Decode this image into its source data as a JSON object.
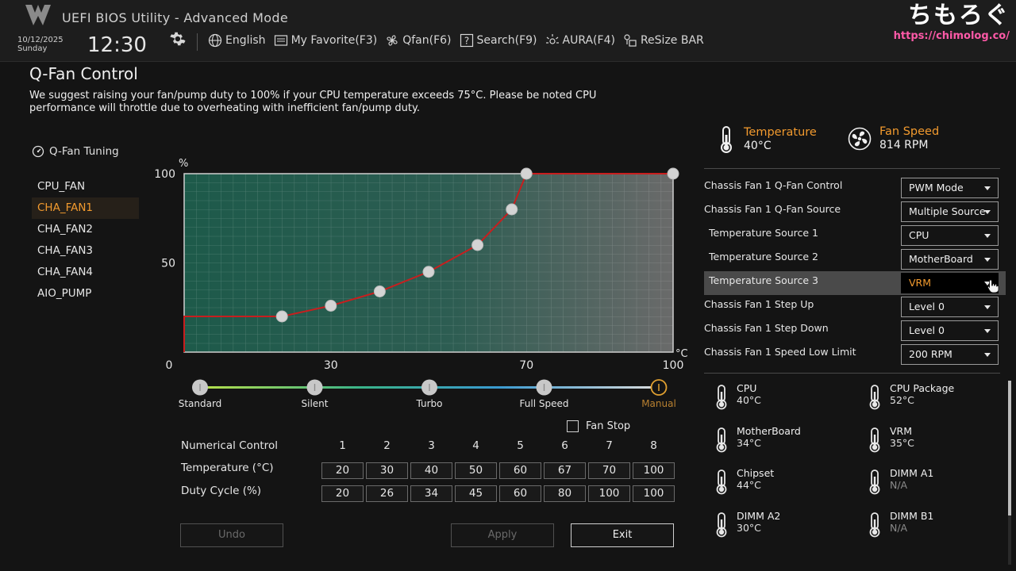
{
  "header": {
    "app_title": "UEFI BIOS Utility - Advanced Mode",
    "date": "10/12/2025",
    "day": "Sunday",
    "time": "12:30",
    "menu": [
      {
        "label": "English",
        "icon": "globe-icon"
      },
      {
        "label": "My Favorite(F3)",
        "icon": "favorite-icon"
      },
      {
        "label": "Qfan(F6)",
        "icon": "fan-icon"
      },
      {
        "label": "Search(F9)",
        "icon": "search-icon"
      },
      {
        "label": "AURA(F4)",
        "icon": "aura-icon"
      },
      {
        "label": "ReSize BAR",
        "icon": "resize-bar-icon"
      }
    ],
    "watermark": "ちもろぐ",
    "watermark_url": "https://chimolog.co/"
  },
  "page": {
    "title": "Q-Fan Control",
    "notice": "We suggest raising your fan/pump duty to 100% if your CPU temperature exceeds 75°C. Please be noted CPU performance will throttle due to overheating with inefficient fan/pump duty."
  },
  "fan_tuning": {
    "title": "Q-Fan Tuning",
    "fans": [
      "CPU_FAN",
      "CHA_FAN1",
      "CHA_FAN2",
      "CHA_FAN3",
      "CHA_FAN4",
      "AIO_PUMP"
    ],
    "active_fan": "CHA_FAN1"
  },
  "chart_data": {
    "type": "line",
    "ylabel": "%",
    "xlabel": "°C",
    "xlim": [
      0,
      100
    ],
    "ylim": [
      0,
      100
    ],
    "x_ticks": [
      0,
      30,
      70,
      100
    ],
    "y_ticks": [
      50,
      100
    ],
    "points": [
      [
        20,
        20
      ],
      [
        30,
        26
      ],
      [
        40,
        34
      ],
      [
        50,
        45
      ],
      [
        60,
        60
      ],
      [
        67,
        80
      ],
      [
        70,
        100
      ],
      [
        100,
        100
      ]
    ],
    "line_color": "#c81e1e"
  },
  "presets": [
    {
      "label": "Standard",
      "position": 0
    },
    {
      "label": "Silent",
      "position": 25
    },
    {
      "label": "Turbo",
      "position": 50
    },
    {
      "label": "Full Speed",
      "position": 75
    },
    {
      "label": "Manual",
      "position": 100
    }
  ],
  "fan_stop": {
    "label": "Fan Stop",
    "checked": false
  },
  "numerical_control": {
    "title": "Numerical Control",
    "columns": [
      "1",
      "2",
      "3",
      "4",
      "5",
      "6",
      "7",
      "8"
    ],
    "temperature_label": "Temperature (°C)",
    "temperatures": [
      "20",
      "30",
      "40",
      "50",
      "60",
      "67",
      "70",
      "100"
    ],
    "duty_label": "Duty Cycle (%)",
    "duties": [
      "20",
      "26",
      "34",
      "45",
      "60",
      "80",
      "100",
      "100"
    ]
  },
  "buttons": {
    "undo": "Undo",
    "apply": "Apply",
    "exit": "Exit"
  },
  "status": {
    "temperature_label": "Temperature",
    "temperature_value": "40°C",
    "fan_speed_label": "Fan Speed",
    "fan_speed_value": "814 RPM"
  },
  "settings": [
    {
      "label": "Chassis Fan 1 Q-Fan Control",
      "value": "PWM Mode",
      "indent": false,
      "highlight": false
    },
    {
      "label": "Chassis Fan 1 Q-Fan Source",
      "value": "Multiple Source",
      "indent": false,
      "highlight": false
    },
    {
      "label": "Temperature Source 1",
      "value": "CPU",
      "indent": true,
      "highlight": false
    },
    {
      "label": "Temperature Source 2",
      "value": "MotherBoard",
      "indent": true,
      "highlight": false
    },
    {
      "label": "Temperature Source 3",
      "value": "VRM",
      "indent": true,
      "highlight": true
    },
    {
      "label": "Chassis Fan 1 Step Up",
      "value": "Level 0",
      "indent": false,
      "highlight": false
    },
    {
      "label": "Chassis Fan 1 Step Down",
      "value": "Level 0",
      "indent": false,
      "highlight": false
    },
    {
      "label": "Chassis Fan 1 Speed Low Limit",
      "value": "200 RPM",
      "indent": false,
      "highlight": false
    }
  ],
  "sensors": [
    {
      "name": "CPU",
      "value": "40°C"
    },
    {
      "name": "CPU Package",
      "value": "52°C"
    },
    {
      "name": "MotherBoard",
      "value": "34°C"
    },
    {
      "name": "VRM",
      "value": "35°C"
    },
    {
      "name": "Chipset",
      "value": "44°C"
    },
    {
      "name": "DIMM A1",
      "value": "N/A"
    },
    {
      "name": "DIMM A2",
      "value": "30°C"
    },
    {
      "name": "DIMM B1",
      "value": "N/A"
    }
  ],
  "colors": {
    "accent": "#f29a2e",
    "curve": "#c81e1e"
  }
}
